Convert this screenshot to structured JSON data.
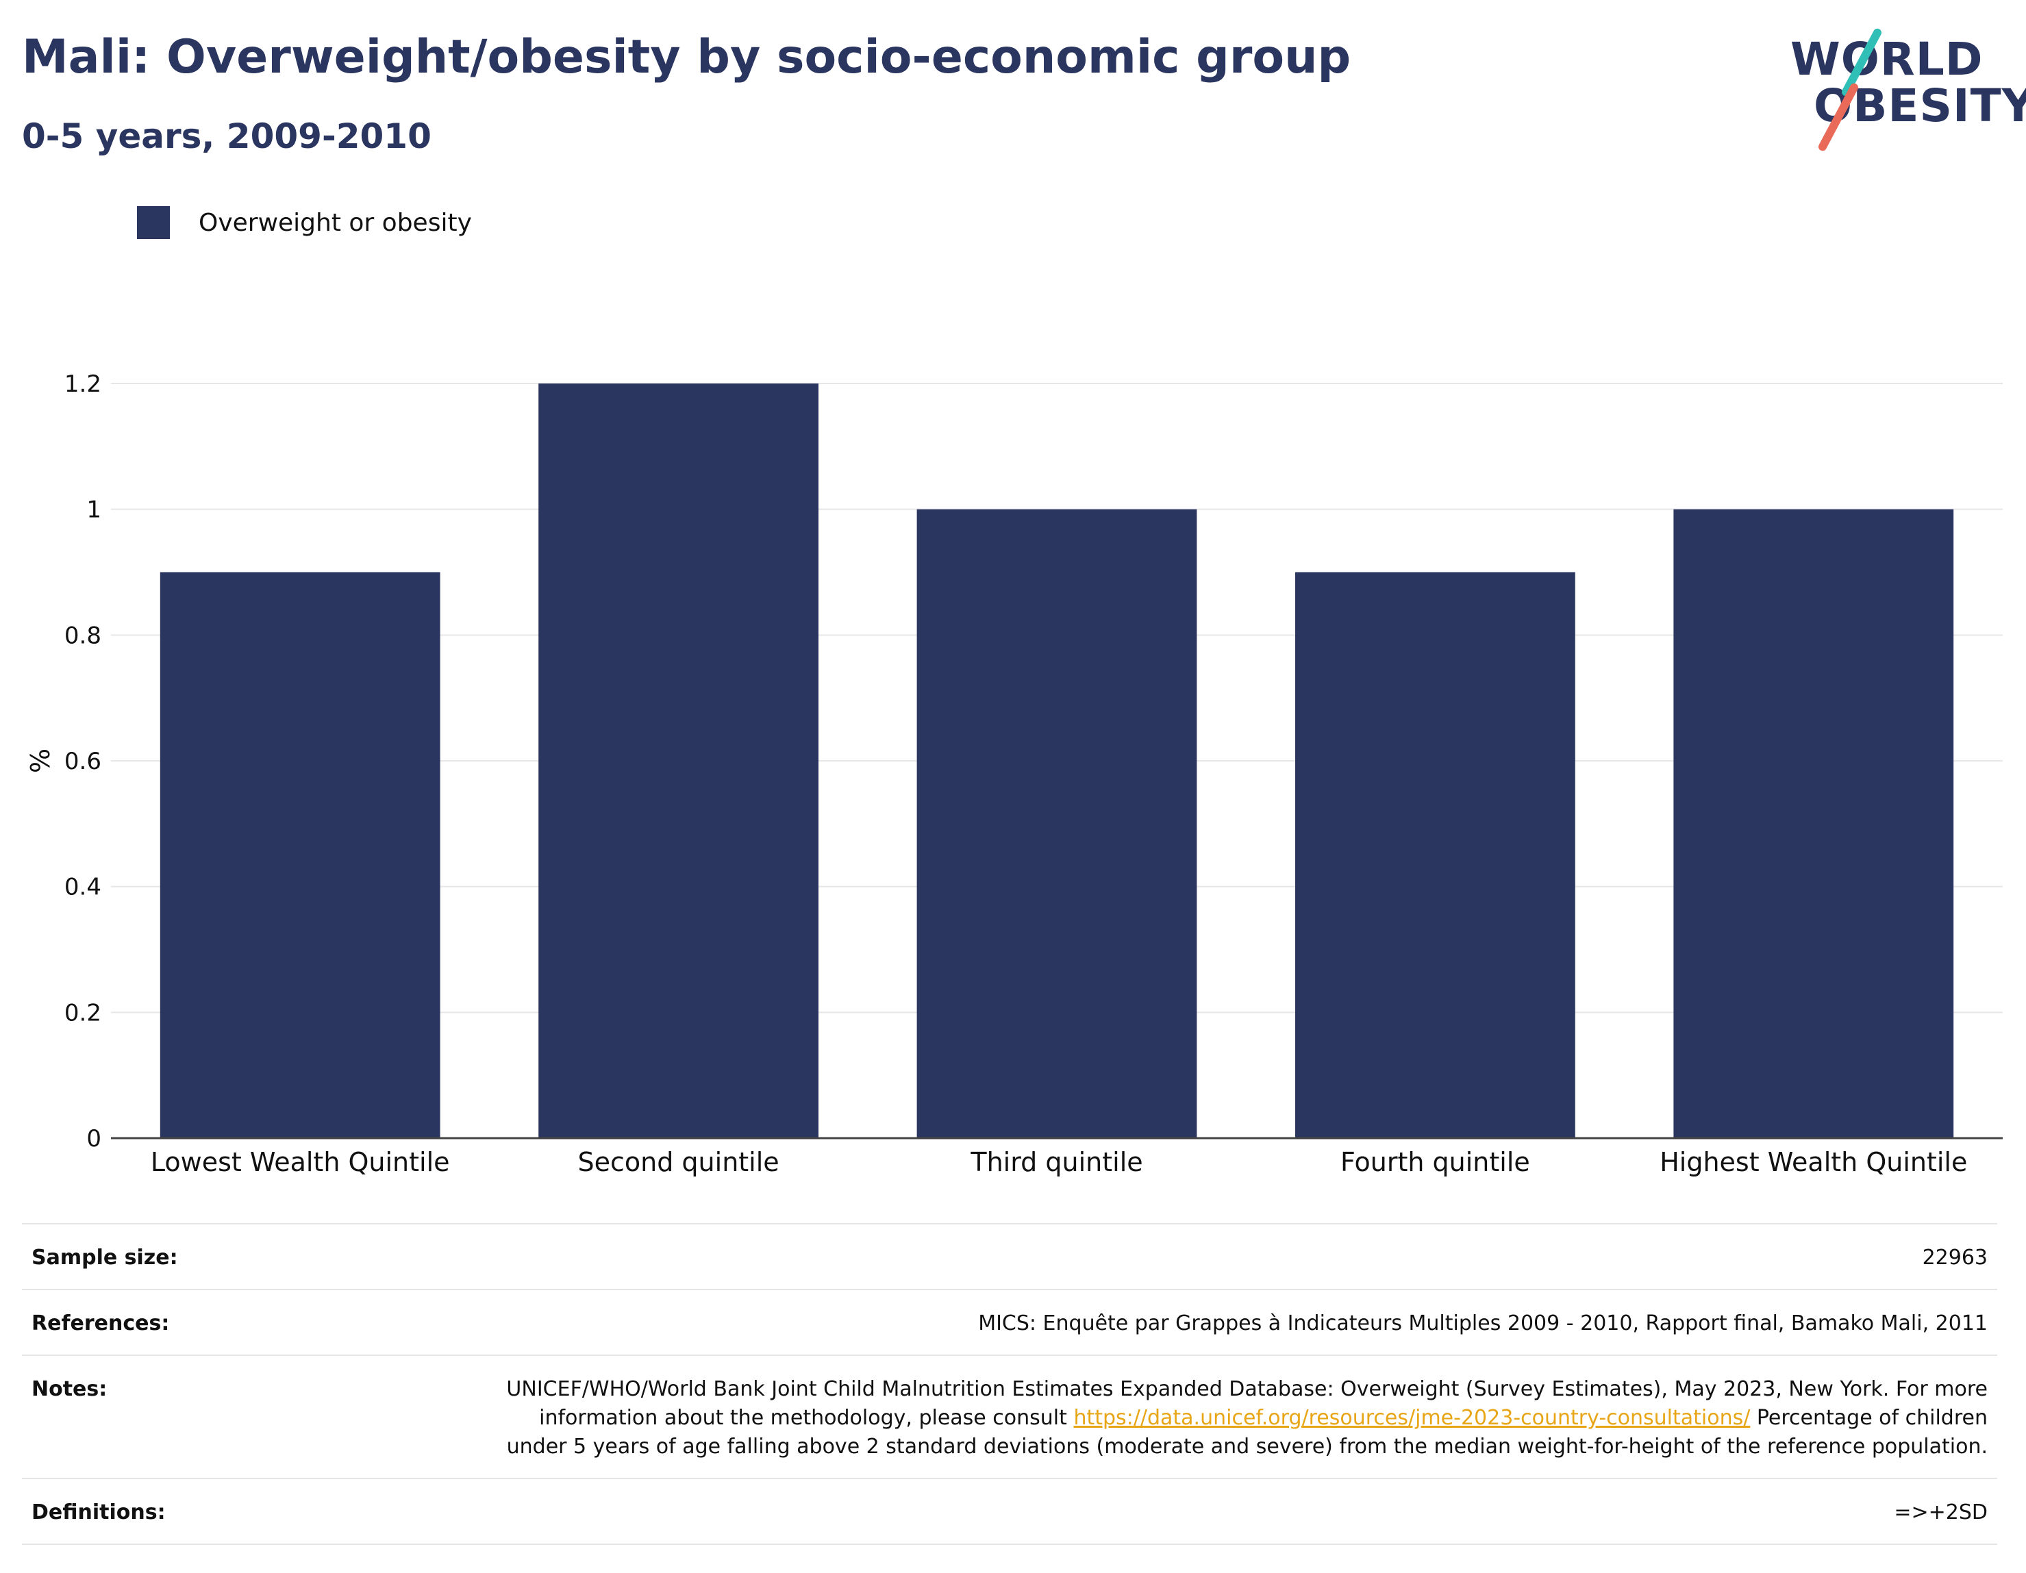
{
  "header": {
    "title": "Mali: Overweight/obesity by socio-economic group",
    "subtitle": "0-5 years, 2009-2010"
  },
  "logo": {
    "line1": "WORLD",
    "line2": "OBESITY"
  },
  "legend": {
    "label": "Overweight or obesity"
  },
  "colors": {
    "bar": "#2b3660",
    "grid": "#e6e6e6",
    "axis": "#444444",
    "link": "#e8a617"
  },
  "chart_data": {
    "type": "bar",
    "categories": [
      "Lowest Wealth Quintile",
      "Second quintile",
      "Third quintile",
      "Fourth quintile",
      "Highest Wealth Quintile"
    ],
    "series": [
      {
        "name": "Overweight or obesity",
        "values": [
          0.9,
          1.2,
          1.0,
          0.9,
          1.0
        ]
      }
    ],
    "ylabel": "%",
    "ylim": [
      0,
      1.2
    ],
    "yticks": [
      0,
      0.2,
      0.4,
      0.6,
      0.8,
      1,
      1.2
    ],
    "ytick_labels": [
      "0",
      "0.2",
      "0.4",
      "0.6",
      "0.8",
      "1",
      "1.2"
    ],
    "grid": true,
    "legend_position": "top-left"
  },
  "info": {
    "sample_size": {
      "label": "Sample size:",
      "value": "22963"
    },
    "references": {
      "label": "References:",
      "value": "MICS: Enquête par Grappes à Indicateurs Multiples 2009 - 2010, Rapport final, Bamako Mali, 2011"
    },
    "notes": {
      "label": "Notes:",
      "text1": "UNICEF/WHO/World Bank Joint Child Malnutrition Estimates Expanded Database: Overweight (Survey Estimates), May 2023, New York. For more information about the methodology, please consult ",
      "link": "https://data.unicef.org/resources/jme-2023-country-consultations/",
      "text2": " Percentage of children under 5 years of age falling above 2 standard deviations (moderate and severe) from the median weight-for-height of the reference population."
    },
    "definitions": {
      "label": "Definitions:",
      "value": "=>+2SD"
    }
  }
}
